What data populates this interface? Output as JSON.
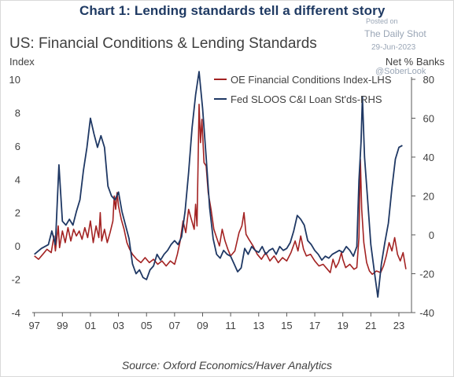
{
  "banner": "Chart 1: Lending standards tell a different story",
  "watermark": {
    "posted": "Posted on",
    "brand": "The Daily Shot",
    "date": "29-Jun-2023",
    "handle": "@SoberLook"
  },
  "source": "Source: Oxford Economics/Haver Analytics",
  "colors": {
    "ofci": "#a32222",
    "sloos": "#1f3864",
    "axis": "#595959",
    "text": "#404040",
    "banner": "#1f3a63"
  },
  "chart_data": {
    "type": "line",
    "title": "US: Financial Conditions & Lending Standards",
    "left_axis": {
      "label": "Index",
      "ylim": [
        -4,
        10
      ],
      "ticks": [
        "-4",
        "-2",
        "0",
        "2",
        "4",
        "6",
        "8",
        "10"
      ]
    },
    "right_axis": {
      "label": "Net % Banks",
      "ylim": [
        -40,
        80
      ],
      "ticks": [
        "-40",
        "-20",
        "0",
        "20",
        "40",
        "60",
        "80"
      ]
    },
    "x_ticks": [
      {
        "label": "97",
        "x": 1997.0
      },
      {
        "label": "99",
        "x": 1999.0
      },
      {
        "label": "01",
        "x": 2001.0
      },
      {
        "label": "03",
        "x": 2003.0
      },
      {
        "label": "05",
        "x": 2005.0
      },
      {
        "label": "07",
        "x": 2007.0
      },
      {
        "label": "09",
        "x": 2009.0
      },
      {
        "label": "11",
        "x": 2011.0
      },
      {
        "label": "13",
        "x": 2013.0
      },
      {
        "label": "15",
        "x": 2015.0
      },
      {
        "label": "17",
        "x": 2017.0
      },
      {
        "label": "19",
        "x": 2019.0
      },
      {
        "label": "21",
        "x": 2021.0
      },
      {
        "label": "23",
        "x": 2023.0
      }
    ],
    "xlim": [
      1996.85,
      2023.9
    ],
    "grid": false,
    "legend_position": "top-right",
    "series": [
      {
        "name": "OE Financial Conditions Index-LHS",
        "axis": "left",
        "points": [
          [
            1997.0,
            -0.6
          ],
          [
            1997.3,
            -0.8
          ],
          [
            1997.6,
            -0.5
          ],
          [
            1997.9,
            -0.2
          ],
          [
            1998.2,
            -0.4
          ],
          [
            1998.4,
            0.6
          ],
          [
            1998.5,
            -0.3
          ],
          [
            1998.7,
            1.2
          ],
          [
            1998.8,
            -0.1
          ],
          [
            1999.0,
            0.9
          ],
          [
            1999.2,
            0.2
          ],
          [
            1999.4,
            1.1
          ],
          [
            1999.6,
            0.3
          ],
          [
            1999.8,
            1.0
          ],
          [
            2000.0,
            0.6
          ],
          [
            2000.2,
            0.9
          ],
          [
            2000.4,
            0.4
          ],
          [
            2000.6,
            1.1
          ],
          [
            2000.8,
            0.5
          ],
          [
            2001.0,
            1.5
          ],
          [
            2001.2,
            0.2
          ],
          [
            2001.4,
            1.2
          ],
          [
            2001.6,
            0.5
          ],
          [
            2001.7,
            2.0
          ],
          [
            2001.8,
            0.3
          ],
          [
            2002.0,
            1.0
          ],
          [
            2002.2,
            0.2
          ],
          [
            2002.4,
            0.8
          ],
          [
            2002.6,
            1.5
          ],
          [
            2002.7,
            3.0
          ],
          [
            2002.8,
            2.2
          ],
          [
            2002.9,
            3.2
          ],
          [
            2003.0,
            2.4
          ],
          [
            2003.2,
            1.6
          ],
          [
            2003.4,
            1.0
          ],
          [
            2003.6,
            0.2
          ],
          [
            2003.8,
            -0.2
          ],
          [
            2004.0,
            -0.5
          ],
          [
            2004.3,
            -0.8
          ],
          [
            2004.6,
            -1.0
          ],
          [
            2004.9,
            -0.7
          ],
          [
            2005.2,
            -1.0
          ],
          [
            2005.5,
            -0.8
          ],
          [
            2005.8,
            -1.1
          ],
          [
            2006.1,
            -0.9
          ],
          [
            2006.4,
            -1.2
          ],
          [
            2006.7,
            -0.9
          ],
          [
            2007.0,
            -1.1
          ],
          [
            2007.2,
            -0.5
          ],
          [
            2007.4,
            0.3
          ],
          [
            2007.6,
            1.5
          ],
          [
            2007.8,
            0.8
          ],
          [
            2008.0,
            2.2
          ],
          [
            2008.2,
            1.6
          ],
          [
            2008.4,
            1.0
          ],
          [
            2008.5,
            2.5
          ],
          [
            2008.6,
            1.2
          ],
          [
            2008.75,
            8.5
          ],
          [
            2008.85,
            6.2
          ],
          [
            2008.95,
            7.6
          ],
          [
            2009.1,
            5.0
          ],
          [
            2009.25,
            4.8
          ],
          [
            2009.4,
            3.2
          ],
          [
            2009.6,
            2.2
          ],
          [
            2009.8,
            1.0
          ],
          [
            2010.0,
            0.5
          ],
          [
            2010.2,
            0.0
          ],
          [
            2010.4,
            1.0
          ],
          [
            2010.6,
            0.3
          ],
          [
            2010.8,
            -0.2
          ],
          [
            2011.0,
            -0.6
          ],
          [
            2011.3,
            -0.3
          ],
          [
            2011.6,
            0.8
          ],
          [
            2011.8,
            1.2
          ],
          [
            2011.95,
            2.0
          ],
          [
            2012.1,
            0.7
          ],
          [
            2012.3,
            0.4
          ],
          [
            2012.6,
            0.0
          ],
          [
            2012.9,
            -0.5
          ],
          [
            2013.2,
            -0.8
          ],
          [
            2013.5,
            -0.4
          ],
          [
            2013.8,
            -0.9
          ],
          [
            2014.1,
            -0.6
          ],
          [
            2014.4,
            -1.0
          ],
          [
            2014.7,
            -0.7
          ],
          [
            2015.0,
            -0.9
          ],
          [
            2015.3,
            -0.4
          ],
          [
            2015.6,
            0.3
          ],
          [
            2015.8,
            -0.3
          ],
          [
            2016.0,
            0.6
          ],
          [
            2016.2,
            -0.2
          ],
          [
            2016.4,
            -0.6
          ],
          [
            2016.7,
            -0.5
          ],
          [
            2017.0,
            -0.9
          ],
          [
            2017.3,
            -1.2
          ],
          [
            2017.6,
            -1.1
          ],
          [
            2017.9,
            -1.4
          ],
          [
            2018.1,
            -1.6
          ],
          [
            2018.3,
            -0.8
          ],
          [
            2018.5,
            -1.3
          ],
          [
            2018.7,
            -1.0
          ],
          [
            2018.9,
            -0.4
          ],
          [
            2019.0,
            -0.8
          ],
          [
            2019.2,
            -1.3
          ],
          [
            2019.5,
            -1.1
          ],
          [
            2019.8,
            -1.4
          ],
          [
            2020.0,
            -1.3
          ],
          [
            2020.15,
            0.5
          ],
          [
            2020.25,
            5.2
          ],
          [
            2020.35,
            2.2
          ],
          [
            2020.5,
            0.2
          ],
          [
            2020.7,
            -1.0
          ],
          [
            2020.9,
            -1.5
          ],
          [
            2021.1,
            -1.7
          ],
          [
            2021.4,
            -1.5
          ],
          [
            2021.7,
            -1.6
          ],
          [
            2021.9,
            -1.2
          ],
          [
            2022.1,
            -0.6
          ],
          [
            2022.3,
            0.2
          ],
          [
            2022.5,
            -0.3
          ],
          [
            2022.7,
            0.5
          ],
          [
            2022.9,
            -0.5
          ],
          [
            2023.1,
            -0.9
          ],
          [
            2023.3,
            -0.4
          ],
          [
            2023.5,
            -1.4
          ]
        ]
      },
      {
        "name": "Fed SLOOS C&I Loan St'ds-RHS",
        "axis": "right",
        "points": [
          [
            1997.0,
            -10
          ],
          [
            1997.5,
            -7
          ],
          [
            1998.0,
            -5
          ],
          [
            1998.25,
            2
          ],
          [
            1998.5,
            -5
          ],
          [
            1998.75,
            36
          ],
          [
            1999.0,
            7
          ],
          [
            1999.25,
            5
          ],
          [
            1999.5,
            8
          ],
          [
            1999.75,
            5
          ],
          [
            2000.0,
            12
          ],
          [
            2000.25,
            18
          ],
          [
            2000.5,
            33
          ],
          [
            2000.75,
            45
          ],
          [
            2001.0,
            60
          ],
          [
            2001.25,
            52
          ],
          [
            2001.5,
            45
          ],
          [
            2001.75,
            51
          ],
          [
            2002.0,
            45
          ],
          [
            2002.25,
            25
          ],
          [
            2002.5,
            20
          ],
          [
            2002.75,
            18
          ],
          [
            2003.0,
            22
          ],
          [
            2003.25,
            12
          ],
          [
            2003.5,
            5
          ],
          [
            2003.75,
            -2
          ],
          [
            2004.0,
            -15
          ],
          [
            2004.25,
            -20
          ],
          [
            2004.5,
            -18
          ],
          [
            2004.75,
            -22
          ],
          [
            2005.0,
            -23
          ],
          [
            2005.25,
            -18
          ],
          [
            2005.5,
            -16
          ],
          [
            2005.75,
            -10
          ],
          [
            2006.0,
            -13
          ],
          [
            2006.25,
            -10
          ],
          [
            2006.5,
            -8
          ],
          [
            2006.75,
            -5
          ],
          [
            2007.0,
            -3
          ],
          [
            2007.25,
            -5
          ],
          [
            2007.5,
            -1
          ],
          [
            2007.75,
            12
          ],
          [
            2008.0,
            32
          ],
          [
            2008.25,
            55
          ],
          [
            2008.5,
            72
          ],
          [
            2008.75,
            84
          ],
          [
            2009.0,
            65
          ],
          [
            2009.25,
            40
          ],
          [
            2009.5,
            14
          ],
          [
            2009.75,
            -2
          ],
          [
            2010.0,
            -10
          ],
          [
            2010.25,
            -12
          ],
          [
            2010.5,
            -8
          ],
          [
            2010.75,
            -10
          ],
          [
            2011.0,
            -11
          ],
          [
            2011.25,
            -15
          ],
          [
            2011.5,
            -19
          ],
          [
            2011.75,
            -17
          ],
          [
            2012.0,
            -7
          ],
          [
            2012.25,
            -10
          ],
          [
            2012.5,
            -6
          ],
          [
            2012.75,
            -8
          ],
          [
            2013.0,
            -9
          ],
          [
            2013.25,
            -6
          ],
          [
            2013.5,
            -10
          ],
          [
            2013.75,
            -8
          ],
          [
            2014.0,
            -7
          ],
          [
            2014.25,
            -10
          ],
          [
            2014.5,
            -6
          ],
          [
            2014.75,
            -8
          ],
          [
            2015.0,
            -7
          ],
          [
            2015.25,
            -4
          ],
          [
            2015.5,
            2
          ],
          [
            2015.75,
            10
          ],
          [
            2016.0,
            8
          ],
          [
            2016.25,
            5
          ],
          [
            2016.5,
            -3
          ],
          [
            2016.75,
            -5
          ],
          [
            2017.0,
            -8
          ],
          [
            2017.25,
            -10
          ],
          [
            2017.5,
            -13
          ],
          [
            2017.75,
            -11
          ],
          [
            2018.0,
            -12
          ],
          [
            2018.25,
            -10
          ],
          [
            2018.5,
            -9
          ],
          [
            2018.75,
            -8
          ],
          [
            2019.0,
            -9
          ],
          [
            2019.25,
            -6
          ],
          [
            2019.5,
            -8
          ],
          [
            2019.75,
            -11
          ],
          [
            2020.0,
            -6
          ],
          [
            2020.15,
            28
          ],
          [
            2020.3,
            48
          ],
          [
            2020.4,
            71
          ],
          [
            2020.55,
            40
          ],
          [
            2020.75,
            20
          ],
          [
            2021.0,
            -5
          ],
          [
            2021.25,
            -19
          ],
          [
            2021.5,
            -32
          ],
          [
            2021.75,
            -15
          ],
          [
            2022.0,
            -4
          ],
          [
            2022.25,
            6
          ],
          [
            2022.5,
            24
          ],
          [
            2022.75,
            39
          ],
          [
            2023.0,
            45
          ],
          [
            2023.25,
            46
          ]
        ]
      }
    ]
  }
}
